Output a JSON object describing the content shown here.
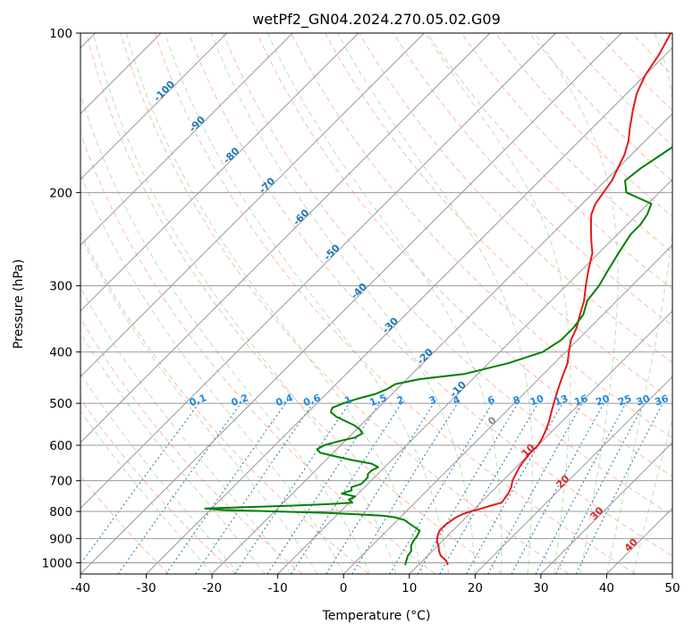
{
  "chart_data": {
    "type": "line",
    "title": "wetPf2_GN04.2024.270.05.02.G09",
    "xlabel": "Temperature (°C)",
    "ylabel": "Pressure (hPa)",
    "xlim": [
      -40,
      50
    ],
    "ylim": [
      1050,
      100
    ],
    "y_scale": "log",
    "x_ticks": [
      -40,
      -30,
      -20,
      -10,
      0,
      10,
      20,
      30,
      40,
      50
    ],
    "y_ticks": [
      100,
      200,
      300,
      400,
      500,
      600,
      700,
      800,
      900,
      1000
    ],
    "grid": true,
    "skew": "skew-T log-P",
    "colors": {
      "temperature": "#e41a1c",
      "dewpoint": "#008000",
      "isotherm": "#999999",
      "dry_adiabat": "#ffb3a0",
      "moist_adiabat": "#b7dcb7",
      "mixing_ratio": "#1f77b4",
      "dry_label": "#d62728",
      "isotherm_label": "#1f77b4"
    },
    "isotherm_labels": [
      {
        "t": -100,
        "p": 130,
        "text": "-100"
      },
      {
        "t": -90,
        "p": 150,
        "text": "-90"
      },
      {
        "t": -80,
        "p": 172,
        "text": "-80"
      },
      {
        "t": -70,
        "p": 196,
        "text": "-70"
      },
      {
        "t": -60,
        "p": 225,
        "text": "-60"
      },
      {
        "t": -50,
        "p": 262,
        "text": "-50"
      },
      {
        "t": -40,
        "p": 310,
        "text": "-40"
      },
      {
        "t": -30,
        "p": 360,
        "text": "-30"
      },
      {
        "t": -20,
        "p": 412,
        "text": "-20"
      },
      {
        "t": -10,
        "p": 475,
        "text": "-10"
      },
      {
        "t": 0,
        "p": 545,
        "text": "0"
      },
      {
        "t": 10,
        "p": 620,
        "text": "10"
      },
      {
        "t": 20,
        "p": 710,
        "text": "20"
      },
      {
        "t": 30,
        "p": 815,
        "text": "30"
      },
      {
        "t": 40,
        "p": 935,
        "text": "40"
      }
    ],
    "mixing_ratio_labels": [
      "0.1",
      "0.2",
      "0.4",
      "0.6",
      "1",
      "1.5",
      "2",
      "3",
      "4",
      "6",
      "8",
      "10",
      "13",
      "16",
      "20",
      "25",
      "30",
      "36"
    ],
    "series": [
      {
        "name": "temperature",
        "p": [
          1010,
          990,
          970,
          950,
          930,
          910,
          890,
          870,
          850,
          835,
          820,
          810,
          800,
          790,
          780,
          770,
          755,
          740,
          720,
          700,
          680,
          660,
          640,
          620,
          600,
          580,
          560,
          540,
          520,
          500,
          480,
          460,
          440,
          420,
          400,
          380,
          360,
          340,
          320,
          300,
          280,
          260,
          250,
          240,
          230,
          220,
          210,
          200,
          190,
          180,
          170,
          160,
          150,
          140,
          130,
          120,
          110,
          100
        ],
        "t": [
          14.5,
          13.5,
          12.0,
          11.0,
          10.2,
          9.2,
          8.5,
          8.0,
          8.0,
          8.2,
          8.5,
          9.0,
          9.8,
          11.0,
          12.0,
          13.2,
          13.0,
          12.8,
          12.3,
          11.5,
          11.0,
          10.5,
          10.2,
          10.0,
          10.0,
          9.5,
          8.8,
          8.0,
          7.0,
          6.0,
          5.0,
          4.0,
          3.0,
          2.0,
          0.5,
          -1.0,
          -2.0,
          -3.5,
          -5.0,
          -7.0,
          -9.0,
          -11.0,
          -12.5,
          -14.0,
          -15.5,
          -17.0,
          -18.0,
          -18.5,
          -19.0,
          -20.0,
          -21.0,
          -22.5,
          -24.5,
          -26.5,
          -28.5,
          -30.0,
          -31.0,
          -32.5
        ]
      },
      {
        "name": "dewpoint",
        "p": [
          1010,
          990,
          970,
          950,
          930,
          910,
          890,
          870,
          860,
          850,
          840,
          830,
          820,
          815,
          810,
          805,
          800,
          795,
          790,
          785,
          780,
          775,
          770,
          760,
          750,
          740,
          730,
          720,
          710,
          700,
          690,
          680,
          670,
          660,
          650,
          640,
          630,
          620,
          610,
          600,
          590,
          580,
          570,
          560,
          550,
          540,
          530,
          520,
          510,
          500,
          490,
          480,
          470,
          460,
          450,
          440,
          420,
          400,
          380,
          360,
          340,
          320,
          300,
          280,
          260,
          240,
          230,
          220,
          210,
          200,
          190,
          180,
          170,
          160,
          150,
          140,
          130,
          120,
          110,
          100
        ],
        "t": [
          8.0,
          7.5,
          7.0,
          6.8,
          6.0,
          5.6,
          5.4,
          5.0,
          4.0,
          3.0,
          2.0,
          1.0,
          -1.0,
          -3.0,
          -7.0,
          -12.0,
          -20.0,
          -28.0,
          -31.0,
          -25.0,
          -18.0,
          -13.0,
          -9.5,
          -10.5,
          -10.0,
          -12.5,
          -11.5,
          -12.0,
          -11.0,
          -11.0,
          -11.0,
          -11.5,
          -11.5,
          -11.0,
          -12.5,
          -16.0,
          -19.0,
          -22.0,
          -23.0,
          -22.5,
          -21.0,
          -19.0,
          -18.5,
          -19.5,
          -21.0,
          -23.0,
          -25.0,
          -26.5,
          -27.0,
          -26.0,
          -24.5,
          -22.5,
          -21.5,
          -21.0,
          -18.0,
          -12.0,
          -7.0,
          -3.5,
          -2.5,
          -2.5,
          -3.0,
          -4.5,
          -5.0,
          -6.0,
          -7.0,
          -8.0,
          -8.0,
          -8.5,
          -9.5,
          -15.0,
          -17.0,
          -16.5,
          -15.5,
          -14.5,
          -13.0,
          -11.0,
          -9.0,
          -6.5,
          -4.0,
          -2.0
        ]
      }
    ]
  }
}
